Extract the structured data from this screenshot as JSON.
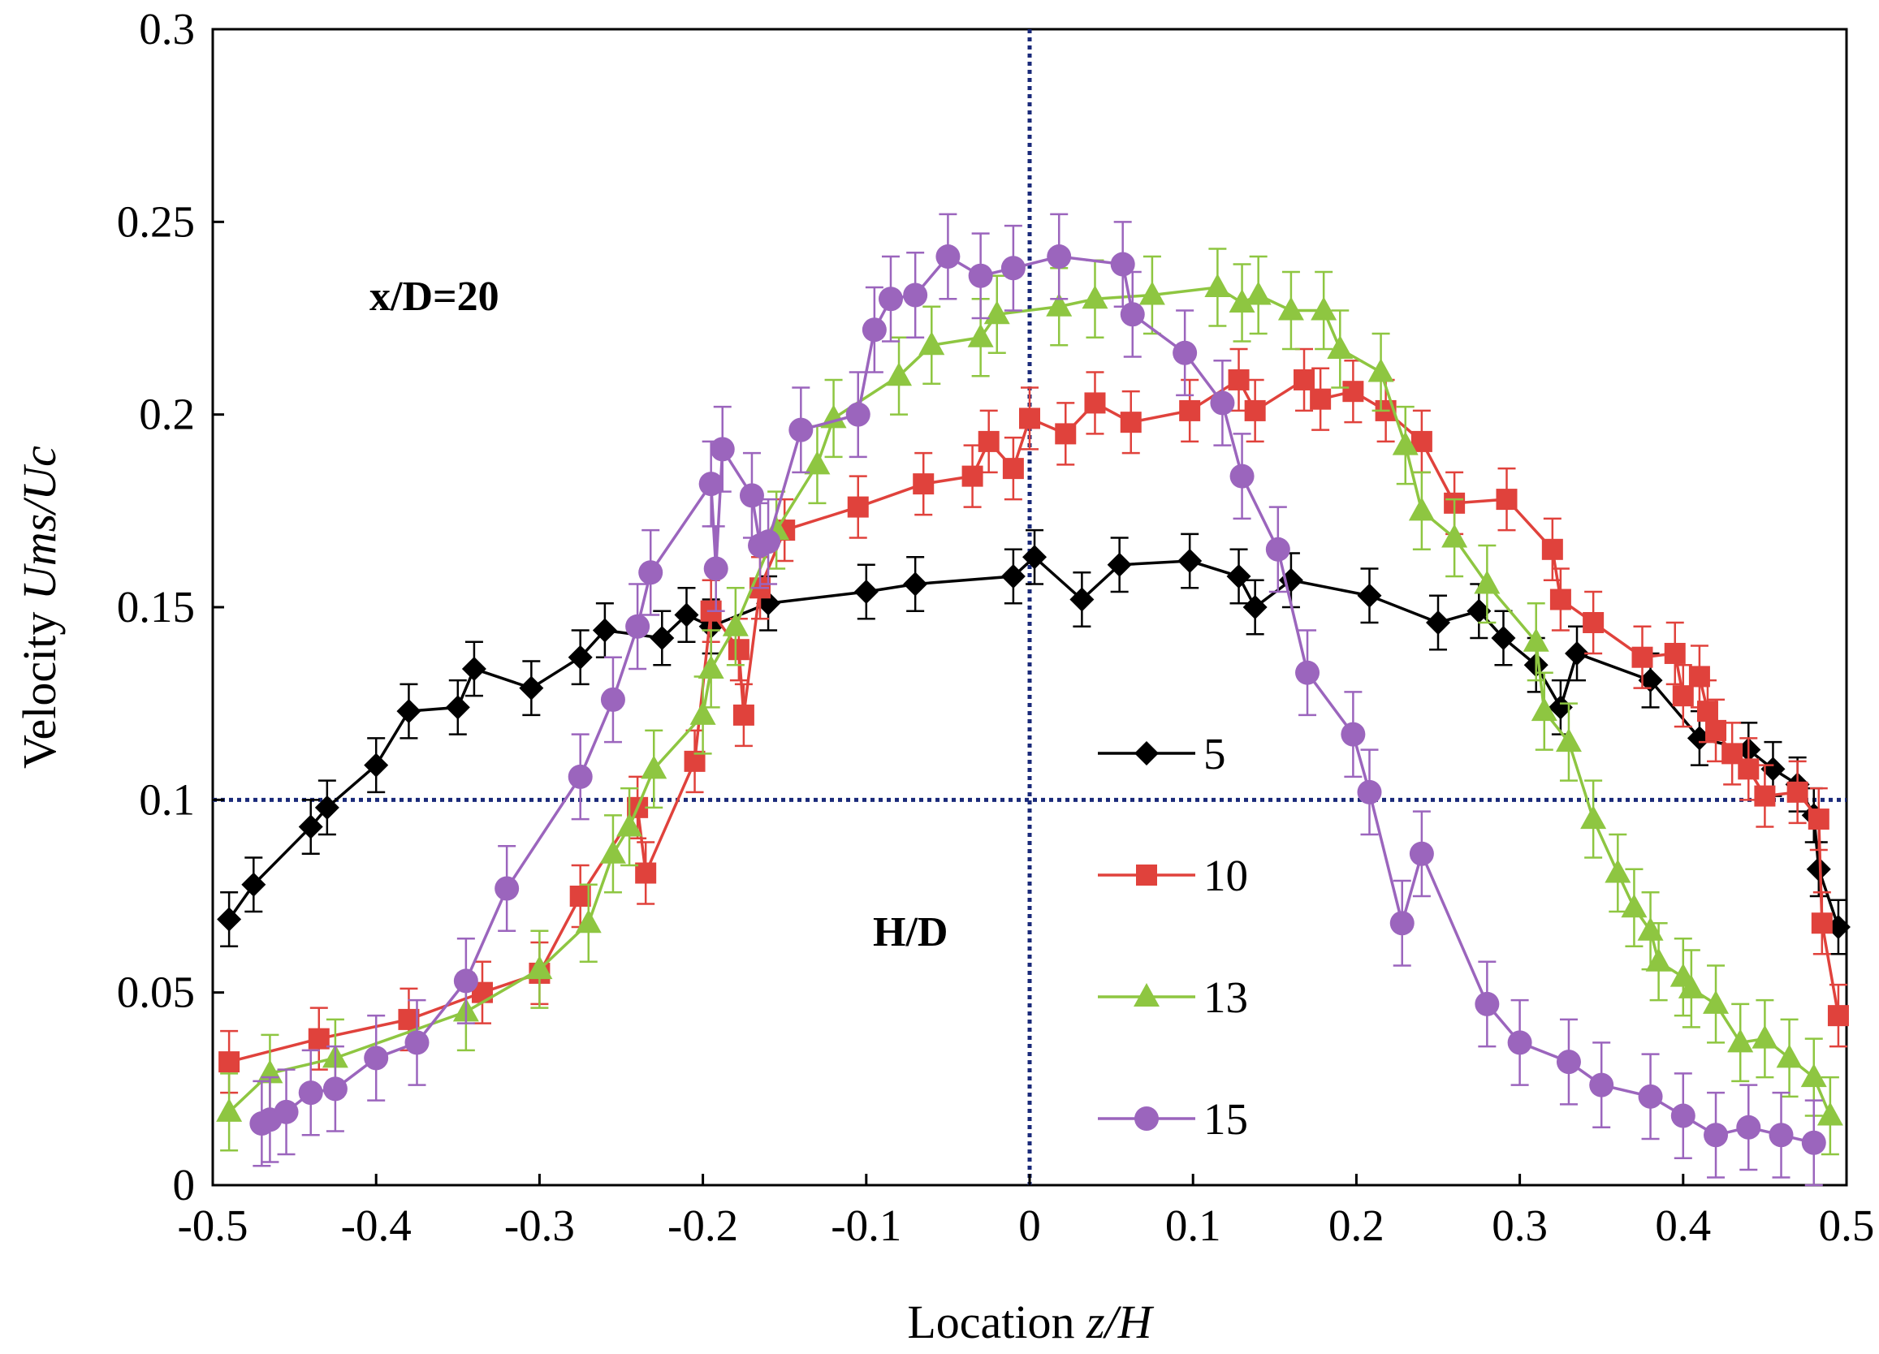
{
  "chart_data": {
    "type": "line",
    "title": "",
    "xlabel": {
      "prefix": "Location ",
      "var": "z/H"
    },
    "ylabel": {
      "prefix": "Velocity ",
      "var": "Ums/Uc"
    },
    "xlim": [
      -0.5,
      0.5
    ],
    "ylim": [
      0,
      0.3
    ],
    "xticks": [
      "-0.5",
      "-0.4",
      "-0.3",
      "-0.2",
      "-0.1",
      "0",
      "0.1",
      "0.2",
      "0.3",
      "0.4",
      "0.5"
    ],
    "yticks": [
      "0",
      "0.05",
      "0.1",
      "0.15",
      "0.2",
      "0.25",
      "0.3"
    ],
    "grid": false,
    "annotations": [
      "x/D=20",
      "H/D"
    ],
    "reference_lines": {
      "vertical_x": 0,
      "horizontal_y": 0.1,
      "color": "#1a2a7a"
    },
    "legend": {
      "position": "center-right",
      "entries": [
        "5",
        "10",
        "13",
        "15"
      ]
    },
    "series": [
      {
        "name": "5",
        "color": "#000000",
        "marker": "diamond",
        "x": [
          -0.49,
          -0.475,
          -0.44,
          -0.43,
          -0.4,
          -0.38,
          -0.35,
          -0.34,
          -0.305,
          -0.275,
          -0.26,
          -0.225,
          -0.21,
          -0.195,
          -0.16,
          -0.1,
          -0.07,
          -0.01,
          0.003,
          0.032,
          0.055,
          0.098,
          0.128,
          0.138,
          0.16,
          0.208,
          0.25,
          0.275,
          0.29,
          0.31,
          0.325,
          0.335,
          0.38,
          0.41,
          0.44,
          0.455,
          0.47,
          0.48,
          0.483,
          0.495
        ],
        "y": [
          0.069,
          0.078,
          0.093,
          0.098,
          0.109,
          0.123,
          0.124,
          0.134,
          0.129,
          0.137,
          0.144,
          0.142,
          0.148,
          0.145,
          0.151,
          0.154,
          0.156,
          0.158,
          0.163,
          0.152,
          0.161,
          0.162,
          0.158,
          0.15,
          0.157,
          0.153,
          0.146,
          0.149,
          0.142,
          0.135,
          0.124,
          0.138,
          0.131,
          0.116,
          0.113,
          0.108,
          0.104,
          0.096,
          0.082,
          0.067
        ],
        "yerr": 0.007
      },
      {
        "name": "10",
        "color": "#e0423c",
        "marker": "square",
        "x": [
          -0.49,
          -0.435,
          -0.38,
          -0.335,
          -0.3,
          -0.275,
          -0.24,
          -0.235,
          -0.205,
          -0.195,
          -0.178,
          -0.175,
          -0.165,
          -0.15,
          -0.105,
          -0.065,
          -0.035,
          -0.025,
          -0.01,
          0,
          0.022,
          0.04,
          0.062,
          0.098,
          0.128,
          0.138,
          0.168,
          0.178,
          0.198,
          0.218,
          0.24,
          0.26,
          0.292,
          0.32,
          0.325,
          0.345,
          0.375,
          0.395,
          0.4,
          0.41,
          0.415,
          0.42,
          0.43,
          0.44,
          0.45,
          0.47,
          0.483,
          0.485,
          0.495
        ],
        "y": [
          0.032,
          0.038,
          0.043,
          0.05,
          0.055,
          0.075,
          0.098,
          0.081,
          0.11,
          0.149,
          0.139,
          0.122,
          0.155,
          0.17,
          0.176,
          0.182,
          0.184,
          0.193,
          0.186,
          0.199,
          0.195,
          0.203,
          0.198,
          0.201,
          0.209,
          0.201,
          0.209,
          0.204,
          0.206,
          0.201,
          0.193,
          0.177,
          0.178,
          0.165,
          0.152,
          0.146,
          0.137,
          0.138,
          0.127,
          0.132,
          0.123,
          0.118,
          0.112,
          0.108,
          0.101,
          0.102,
          0.095,
          0.068,
          0.044
        ],
        "yerr": 0.008
      },
      {
        "name": "13",
        "color": "#8ec641",
        "marker": "triangle",
        "x": [
          -0.49,
          -0.465,
          -0.425,
          -0.345,
          -0.3,
          -0.27,
          -0.255,
          -0.245,
          -0.23,
          -0.2,
          -0.195,
          -0.18,
          -0.155,
          -0.13,
          -0.12,
          -0.08,
          -0.06,
          -0.03,
          -0.02,
          0.018,
          0.04,
          0.075,
          0.115,
          0.13,
          0.14,
          0.16,
          0.18,
          0.19,
          0.215,
          0.23,
          0.24,
          0.26,
          0.28,
          0.31,
          0.315,
          0.33,
          0.345,
          0.36,
          0.37,
          0.38,
          0.385,
          0.4,
          0.405,
          0.42,
          0.435,
          0.45,
          0.465,
          0.48,
          0.49
        ],
        "y": [
          0.019,
          0.029,
          0.033,
          0.045,
          0.056,
          0.068,
          0.086,
          0.093,
          0.108,
          0.122,
          0.134,
          0.145,
          0.17,
          0.187,
          0.199,
          0.21,
          0.218,
          0.22,
          0.226,
          0.228,
          0.23,
          0.231,
          0.233,
          0.229,
          0.231,
          0.227,
          0.227,
          0.217,
          0.211,
          0.192,
          0.175,
          0.168,
          0.156,
          0.141,
          0.123,
          0.115,
          0.095,
          0.081,
          0.072,
          0.066,
          0.058,
          0.054,
          0.051,
          0.047,
          0.037,
          0.038,
          0.033,
          0.028,
          0.018
        ],
        "yerr": 0.01
      },
      {
        "name": "15",
        "color": "#9b65bd",
        "marker": "circle",
        "x": [
          -0.47,
          -0.465,
          -0.455,
          -0.44,
          -0.425,
          -0.4,
          -0.375,
          -0.345,
          -0.32,
          -0.275,
          -0.255,
          -0.24,
          -0.232,
          -0.195,
          -0.192,
          -0.188,
          -0.17,
          -0.165,
          -0.16,
          -0.14,
          -0.105,
          -0.095,
          -0.085,
          -0.07,
          -0.05,
          -0.03,
          -0.01,
          0.018,
          0.057,
          0.063,
          0.095,
          0.118,
          0.13,
          0.152,
          0.17,
          0.198,
          0.208,
          0.228,
          0.24,
          0.28,
          0.3,
          0.33,
          0.35,
          0.38,
          0.4,
          0.42,
          0.44,
          0.46,
          0.48
        ],
        "y": [
          0.016,
          0.017,
          0.019,
          0.024,
          0.025,
          0.033,
          0.037,
          0.053,
          0.077,
          0.106,
          0.126,
          0.145,
          0.159,
          0.182,
          0.16,
          0.191,
          0.179,
          0.166,
          0.167,
          0.196,
          0.2,
          0.222,
          0.23,
          0.231,
          0.241,
          0.236,
          0.238,
          0.241,
          0.239,
          0.226,
          0.216,
          0.203,
          0.184,
          0.165,
          0.133,
          0.117,
          0.102,
          0.068,
          0.086,
          0.047,
          0.037,
          0.032,
          0.026,
          0.023,
          0.018,
          0.013,
          0.015,
          0.013,
          0.011
        ],
        "yerr": 0.011
      }
    ]
  }
}
